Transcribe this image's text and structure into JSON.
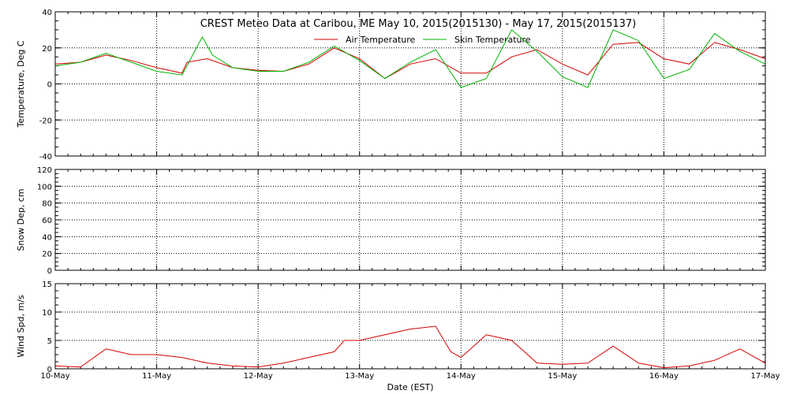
{
  "title": "CREST Meteo Data at Caribou, ME   May 10, 2015(2015130) - May 17, 2015(2015137)",
  "colors": {
    "air": "#d40000",
    "skin": "#00b400",
    "snow": "#0000cc",
    "grid": "#000000"
  },
  "chart_data": [
    {
      "type": "line",
      "ylabel": "Temperature, Deg C",
      "ylim": [
        -40,
        40
      ],
      "yticks": [
        -40,
        -20,
        0,
        20,
        40
      ],
      "xlim": [
        0,
        7
      ],
      "grid": "dotted",
      "legend_position": "top-center",
      "series": [
        {
          "name": "Air Temperature",
          "color": "#d40000",
          "x": [
            0,
            0.25,
            0.5,
            0.75,
            1,
            1.25,
            1.3,
            1.5,
            1.75,
            2,
            2.25,
            2.5,
            2.75,
            3,
            3.25,
            3.5,
            3.75,
            4,
            4.25,
            4.5,
            4.75,
            5,
            5.25,
            5.5,
            5.75,
            6,
            6.25,
            6.5,
            6.75,
            7
          ],
          "y": [
            11,
            12,
            16,
            13,
            9,
            6,
            12,
            14,
            9,
            7.5,
            7,
            11,
            20,
            14,
            3,
            11,
            14,
            6,
            6,
            15,
            19,
            11,
            5,
            22,
            23,
            14,
            11,
            23,
            19,
            14
          ]
        },
        {
          "name": "Skin Temperature",
          "color": "#00b400",
          "x": [
            0,
            0.25,
            0.5,
            0.75,
            1,
            1.25,
            1.45,
            1.55,
            1.75,
            2,
            2.25,
            2.5,
            2.75,
            3,
            3.25,
            3.5,
            3.75,
            4,
            4.25,
            4.5,
            4.75,
            5,
            5.25,
            5.5,
            5.75,
            6,
            6.25,
            6.5,
            6.75,
            7
          ],
          "y": [
            10,
            12,
            17,
            12,
            7,
            5,
            26,
            16,
            9,
            7,
            7,
            12,
            21,
            13,
            3,
            12,
            19,
            -2,
            3,
            30,
            18,
            4,
            -2,
            30,
            24,
            3,
            8,
            28,
            18,
            11
          ]
        }
      ]
    },
    {
      "type": "line",
      "ylabel": "Snow Dep, cm",
      "ylim": [
        0,
        120
      ],
      "yticks": [
        0,
        20,
        40,
        60,
        80,
        100,
        120
      ],
      "xlim": [
        0,
        7
      ],
      "grid": "dotted",
      "series": [
        {
          "color": "#0000cc",
          "x": [
            0,
            1,
            2,
            3,
            4,
            5,
            6,
            7
          ],
          "y": [
            0,
            0,
            0,
            0,
            0,
            0,
            0,
            0
          ]
        }
      ]
    },
    {
      "type": "line",
      "ylabel": "Wind Spd, m/s",
      "xlabel": "Date (EST)",
      "ylim": [
        0,
        15
      ],
      "yticks": [
        0,
        5,
        10,
        15
      ],
      "xlim": [
        0,
        7
      ],
      "grid": "dotted",
      "categories": [
        "10-May",
        "11-May",
        "12-May",
        "13-May",
        "14-May",
        "15-May",
        "16-May",
        "17-May"
      ],
      "series": [
        {
          "color": "#d40000",
          "x": [
            0,
            0.25,
            0.5,
            0.75,
            1,
            1.25,
            1.5,
            1.75,
            2,
            2.25,
            2.5,
            2.75,
            2.85,
            3,
            3.25,
            3.5,
            3.75,
            3.9,
            4,
            4.25,
            4.5,
            4.75,
            5,
            5.25,
            5.5,
            5.75,
            6,
            6.25,
            6.5,
            6.75,
            7
          ],
          "y": [
            0.5,
            0.3,
            3.5,
            2.5,
            2.5,
            2,
            1,
            0.5,
            0.3,
            1,
            2,
            3,
            5,
            5,
            6,
            7,
            7.5,
            3,
            2,
            6,
            5,
            1,
            0.8,
            1,
            4,
            1,
            0.2,
            0.5,
            1.5,
            3.5,
            1
          ]
        }
      ]
    }
  ]
}
